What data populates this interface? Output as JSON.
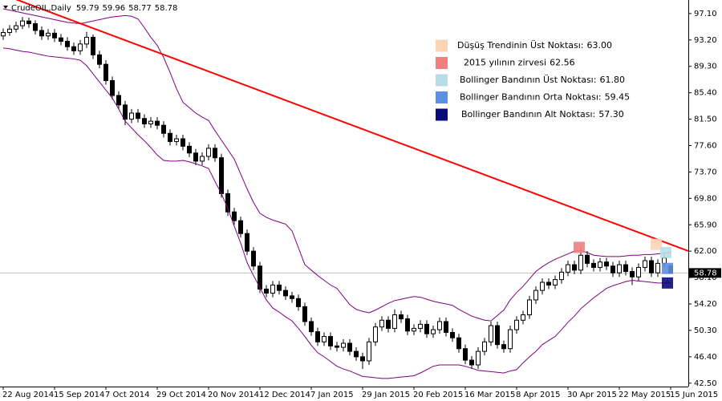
{
  "chart_data": {
    "type": "candlestick",
    "title": "CrudeOIL,Daily",
    "categories": [
      "22 Aug 2014",
      null,
      null,
      null,
      null,
      null,
      null,
      null,
      "15 Sep 2014",
      null,
      null,
      null,
      null,
      null,
      null,
      null,
      "7 Oct 2014",
      null,
      null,
      null,
      null,
      null,
      null,
      null,
      "29 Oct 2014",
      null,
      null,
      null,
      null,
      null,
      null,
      null,
      "20 Nov 2014",
      null,
      null,
      null,
      null,
      null,
      null,
      null,
      "12 Dec 2014",
      null,
      null,
      null,
      null,
      null,
      null,
      null,
      "7 Jan 2015",
      null,
      null,
      null,
      null,
      null,
      null,
      null,
      "29 Jan 2015",
      null,
      null,
      null,
      null,
      null,
      null,
      null,
      "20 Feb 2015",
      null,
      null,
      null,
      null,
      null,
      null,
      null,
      "16 Mar 2015",
      null,
      null,
      null,
      null,
      null,
      null,
      null,
      "8 Apr 2015",
      null,
      null,
      null,
      null,
      null,
      null,
      null,
      "30 Apr 2015",
      null,
      null,
      null,
      null,
      null,
      null,
      null,
      "22 May 2015",
      null,
      null,
      null,
      null,
      null,
      null,
      null,
      "15 Jun 2015"
    ],
    "open": [
      93.8,
      94.3,
      94.8,
      95.3,
      96.0,
      95.6,
      94.6,
      93.8,
      94.2,
      93.5,
      93.0,
      92.2,
      91.6,
      92.6,
      93.6,
      91.0,
      89.6,
      87.2,
      85.0,
      83.6,
      81.5,
      82.4,
      81.6,
      80.8,
      81.2,
      80.6,
      79.4,
      78.2,
      78.6,
      77.5,
      76.5,
      75.3,
      76.0,
      77.2,
      75.8,
      70.5,
      67.8,
      66.5,
      64.6,
      62.0,
      59.8,
      56.4,
      55.8,
      57.0,
      56.2,
      55.4,
      55.0,
      53.8,
      51.6,
      50.1,
      48.6,
      49.4,
      48.0,
      47.8,
      48.4,
      47.2,
      46.4,
      45.8,
      48.6,
      50.8,
      51.8,
      50.6,
      52.6,
      52.0,
      50.2,
      50.6,
      51.2,
      49.8,
      50.4,
      51.6,
      50.0,
      49.2,
      47.6,
      45.9,
      45.2,
      47.2,
      48.6,
      51.0,
      48.2,
      47.6,
      50.4,
      51.8,
      52.6,
      54.8,
      56.2,
      57.4,
      57.0,
      57.8,
      58.9,
      60.0,
      59.2,
      61.4,
      60.2,
      59.6,
      60.4,
      59.8,
      58.8,
      60.0,
      59.0,
      58.2,
      59.6,
      60.6,
      58.8,
      60.2,
      59.79
    ],
    "high": [
      94.9,
      95.4,
      95.9,
      96.6,
      96.5,
      96.1,
      95.2,
      94.8,
      94.8,
      94.1,
      93.6,
      92.8,
      93.2,
      94.4,
      94.0,
      91.6,
      90.2,
      87.8,
      85.6,
      84.2,
      83.0,
      83.0,
      82.2,
      81.8,
      81.8,
      81.2,
      80.0,
      79.2,
      79.2,
      78.1,
      77.1,
      76.6,
      77.8,
      77.8,
      76.4,
      71.1,
      68.4,
      67.1,
      65.2,
      62.6,
      60.4,
      57.0,
      57.6,
      57.6,
      56.8,
      56.0,
      55.6,
      54.4,
      52.2,
      50.7,
      50.0,
      50.0,
      48.6,
      49.0,
      49.0,
      47.8,
      47.0,
      49.2,
      51.4,
      52.4,
      52.4,
      53.4,
      53.2,
      52.6,
      51.2,
      51.8,
      51.8,
      51.0,
      52.2,
      52.2,
      50.6,
      49.8,
      48.2,
      46.5,
      47.8,
      49.2,
      51.6,
      51.6,
      48.8,
      51.0,
      52.4,
      53.2,
      55.4,
      56.8,
      58.0,
      58.0,
      58.4,
      59.5,
      60.6,
      60.6,
      62.6,
      62.0,
      60.8,
      61.0,
      61.0,
      60.4,
      60.6,
      60.6,
      59.6,
      60.2,
      61.2,
      61.2,
      60.8,
      61.8,
      59.96
    ],
    "low": [
      93.2,
      93.8,
      94.3,
      94.8,
      95.0,
      94.0,
      93.2,
      93.2,
      92.9,
      92.4,
      91.6,
      91.0,
      91.0,
      92.0,
      90.4,
      89.0,
      86.6,
      84.4,
      83.0,
      80.6,
      80.9,
      81.0,
      80.2,
      80.2,
      80.0,
      78.8,
      77.6,
      77.6,
      76.9,
      75.9,
      74.7,
      74.7,
      75.4,
      75.2,
      69.9,
      67.2,
      65.9,
      64.0,
      61.4,
      59.2,
      55.8,
      55.2,
      55.2,
      55.6,
      54.8,
      54.4,
      53.2,
      51.0,
      49.5,
      48.0,
      48.0,
      47.4,
      47.2,
      47.2,
      46.6,
      45.8,
      44.6,
      45.2,
      48.0,
      50.2,
      50.0,
      50.0,
      51.4,
      49.6,
      49.6,
      50.0,
      49.2,
      49.2,
      49.8,
      49.4,
      48.6,
      47.0,
      45.3,
      44.6,
      44.6,
      46.6,
      48.0,
      47.6,
      47.0,
      47.0,
      49.8,
      51.2,
      52.0,
      54.2,
      55.6,
      56.4,
      56.4,
      57.2,
      58.3,
      58.6,
      58.6,
      59.6,
      59.0,
      59.0,
      59.2,
      58.2,
      58.2,
      58.4,
      57.0,
      57.6,
      59.0,
      58.2,
      58.2,
      59.6,
      58.77
    ],
    "close": [
      94.3,
      94.8,
      95.3,
      96.0,
      95.6,
      94.6,
      93.8,
      94.2,
      93.5,
      93.0,
      92.2,
      91.6,
      92.6,
      93.6,
      91.0,
      89.6,
      87.2,
      85.0,
      83.6,
      81.5,
      82.4,
      81.6,
      80.8,
      81.2,
      80.6,
      79.4,
      78.2,
      78.6,
      77.5,
      76.5,
      75.3,
      76.0,
      77.2,
      75.8,
      70.5,
      67.8,
      66.5,
      64.6,
      62.0,
      59.8,
      56.4,
      55.8,
      57.0,
      56.2,
      55.4,
      55.0,
      53.8,
      51.6,
      50.1,
      48.6,
      49.4,
      48.0,
      47.8,
      48.4,
      47.2,
      46.4,
      45.8,
      48.6,
      50.8,
      51.8,
      50.6,
      52.6,
      52.0,
      50.2,
      50.6,
      51.2,
      49.8,
      50.4,
      51.6,
      50.0,
      49.2,
      47.6,
      45.9,
      45.2,
      47.2,
      48.6,
      51.0,
      48.2,
      47.6,
      50.4,
      51.8,
      52.6,
      54.8,
      56.2,
      57.4,
      57.0,
      57.8,
      58.9,
      60.0,
      59.2,
      61.4,
      60.2,
      59.6,
      60.4,
      59.8,
      58.8,
      60.0,
      59.0,
      58.2,
      59.6,
      60.6,
      58.8,
      60.2,
      61.0,
      58.78
    ],
    "up_color": "#ffffff",
    "down_color": "#000000",
    "bands": [
      {
        "color": "#800080",
        "values": [
          97.8,
          97.6,
          97.4,
          97.2,
          97.0,
          96.8,
          96.6,
          96.4,
          96.2,
          96.0,
          95.8,
          95.7,
          95.6,
          95.8,
          96.0,
          96.2,
          96.4,
          96.6,
          96.7,
          96.8,
          96.7,
          96.3,
          95.0,
          93.6,
          92.4,
          90.6,
          88.4,
          86.0,
          84.0,
          83.2,
          82.4,
          81.8,
          81.3,
          79.8,
          78.4,
          77.0,
          75.6,
          73.4,
          71.2,
          69.2,
          67.6,
          67.0,
          66.6,
          66.3,
          66.0,
          65.0,
          62.5,
          60.0,
          59.2,
          58.4,
          57.7,
          57.0,
          56.5,
          55.3,
          54.1,
          53.4,
          53.1,
          52.9,
          53.3,
          53.8,
          54.3,
          54.7,
          54.9,
          55.1,
          55.3,
          55.2,
          54.9,
          54.6,
          54.4,
          54.2,
          54.0,
          53.4,
          52.9,
          52.4,
          52.1,
          51.8,
          51.7,
          52.5,
          53.3,
          54.8,
          55.9,
          56.8,
          57.9,
          59.0,
          59.7,
          60.3,
          60.8,
          61.2,
          61.6,
          62.0,
          62.1,
          61.8,
          61.4,
          61.3,
          61.2,
          61.2,
          61.2,
          61.3,
          61.4,
          61.4,
          61.5,
          61.5,
          61.6,
          61.7,
          61.8
        ]
      },
      {
        "color": "#800080",
        "values": [
          92.0,
          91.9,
          91.7,
          91.5,
          91.4,
          91.2,
          91.0,
          90.8,
          90.7,
          90.6,
          90.5,
          90.4,
          90.2,
          89.4,
          88.2,
          87.0,
          85.8,
          84.6,
          83.0,
          81.2,
          80.2,
          79.2,
          78.3,
          77.3,
          76.2,
          75.4,
          75.3,
          75.3,
          75.4,
          75.2,
          74.9,
          74.6,
          74.2,
          72.3,
          70.5,
          68.3,
          65.7,
          63.2,
          60.3,
          58.4,
          56.6,
          54.8,
          53.6,
          53.0,
          52.3,
          51.7,
          50.6,
          49.4,
          48.1,
          47.0,
          46.4,
          45.7,
          45.0,
          44.6,
          44.3,
          43.9,
          43.5,
          43.4,
          43.3,
          43.2,
          43.2,
          43.3,
          43.4,
          43.5,
          43.6,
          44.0,
          44.5,
          45.0,
          45.2,
          45.2,
          45.2,
          45.2,
          45.0,
          44.7,
          44.4,
          44.3,
          44.2,
          44.1,
          44.0,
          44.3,
          44.5,
          45.5,
          46.4,
          47.2,
          48.2,
          48.8,
          49.4,
          50.4,
          51.5,
          52.4,
          53.5,
          54.3,
          55.1,
          55.8,
          56.5,
          56.9,
          57.2,
          57.5,
          57.7,
          57.6,
          57.5,
          57.4,
          57.3,
          57.3,
          57.3
        ]
      }
    ],
    "trend_line": {
      "color": "#ff0000",
      "values": [
        99.9,
        63.0
      ]
    },
    "markers": [
      {
        "label": "Düşüş Trendinin Üst Noktası:",
        "value": 63.0,
        "value_label": "63.00",
        "color": "#fcd5b4"
      },
      {
        "label": "2015 yılının zirvesi",
        "value": 62.56,
        "value_label": "62.56",
        "color": "#f08080"
      },
      {
        "label": "Bollinger Bandının Üst Noktası:",
        "value": 61.8,
        "value_label": "61.80",
        "color": "#b7dee8"
      },
      {
        "label": "Bollinger Bandının Orta Noktası:",
        "value": 59.45,
        "value_label": "59.45",
        "color": "#5b8fe0"
      },
      {
        "label": "Bollinger Bandının Alt Noktası:",
        "value": 57.3,
        "value_label": "57.30",
        "color": "#0a0a7a"
      }
    ],
    "price_line_color": "#c0c0c0",
    "ylim": [
      42.0,
      99.1
    ],
    "yticks": [
      {
        "value": 97.1,
        "label": "97.10"
      },
      {
        "value": 93.2,
        "label": "93.20"
      },
      {
        "value": 89.3,
        "label": "89.30"
      },
      {
        "value": 85.4,
        "label": "85.40"
      },
      {
        "value": 81.5,
        "label": "81.50"
      },
      {
        "value": 77.6,
        "label": "77.60"
      },
      {
        "value": 73.7,
        "label": "73.70"
      },
      {
        "value": 69.8,
        "label": "69.80"
      },
      {
        "value": 65.9,
        "label": "65.90"
      },
      {
        "value": 62.0,
        "label": "62.00"
      },
      {
        "value": 58.1,
        "label": "58.10"
      },
      {
        "value": 54.2,
        "label": "54.20"
      },
      {
        "value": 50.3,
        "label": "50.30"
      },
      {
        "value": 46.4,
        "label": "46.40"
      },
      {
        "value": 42.5,
        "label": "42.50"
      }
    ]
  }
}
